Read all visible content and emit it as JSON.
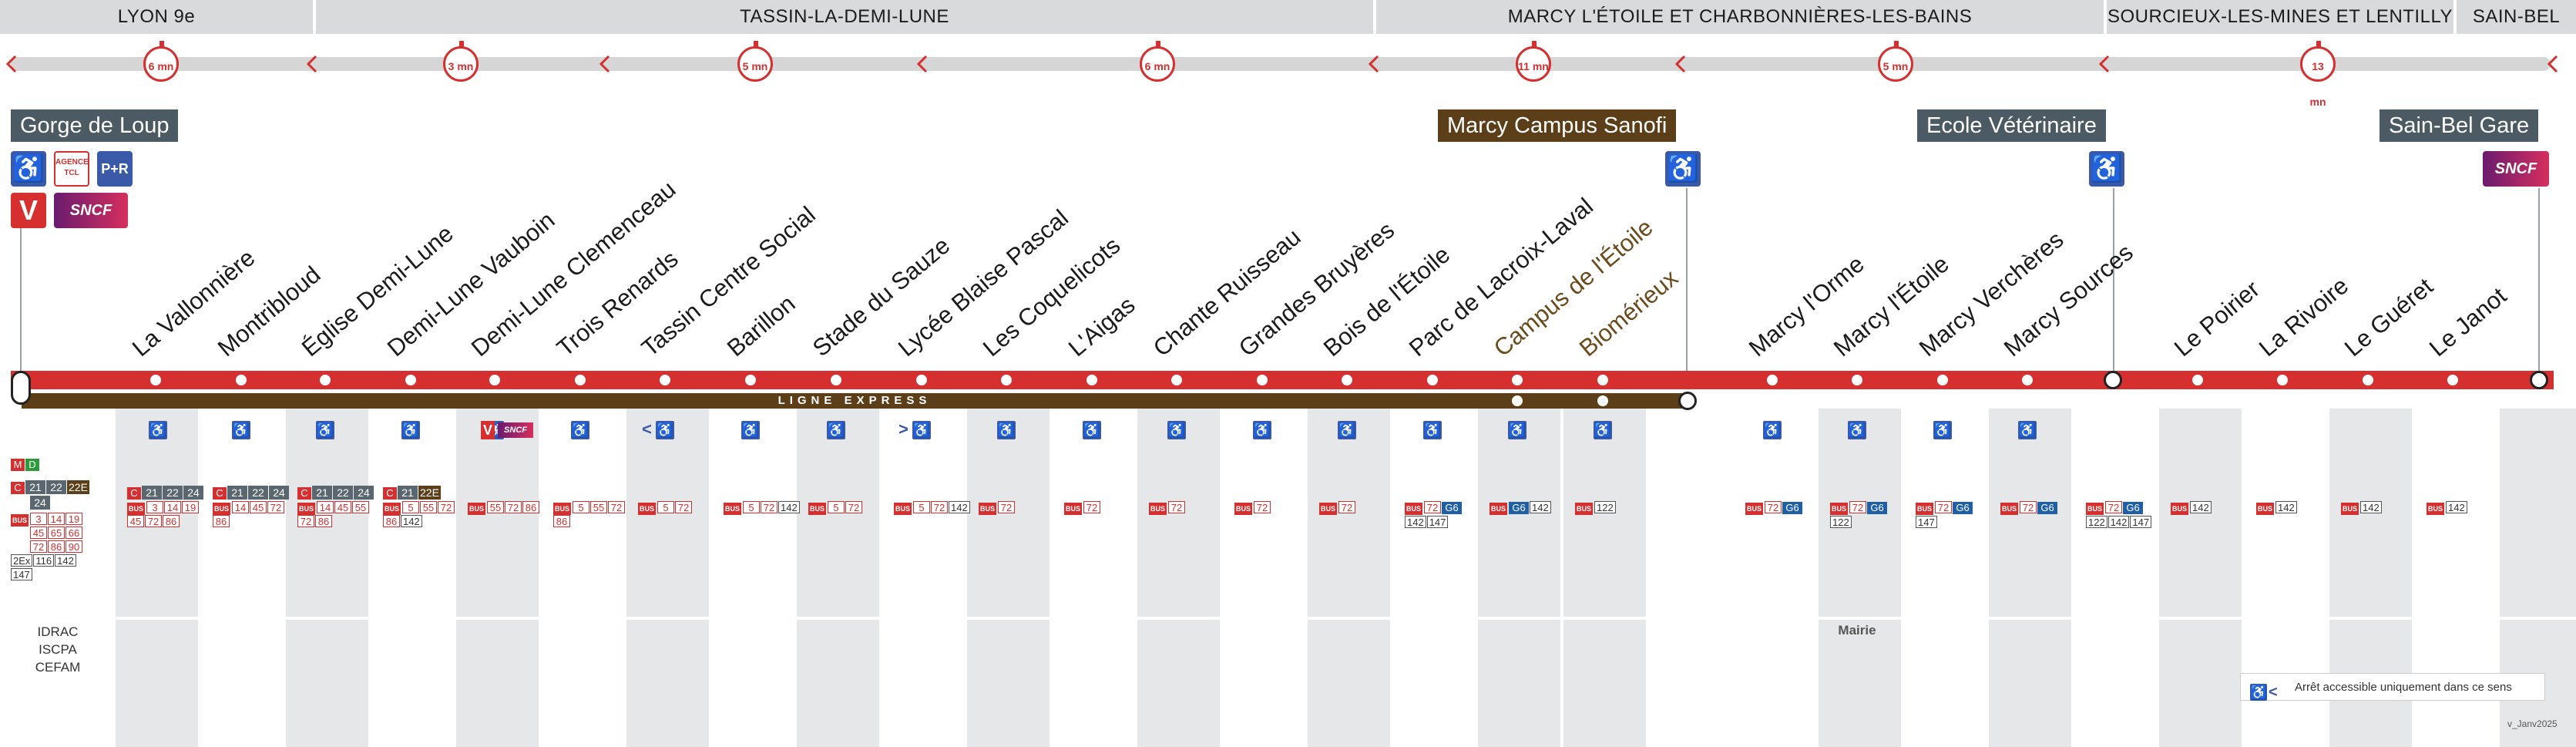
{
  "communes": [
    "LYON 9e",
    "TASSIN-LA-DEMI-LUNE",
    "MARCY L'ÉTOILE ET CHARBONNIÈRES-LES-BAINS",
    "SOURCIEUX-LES-MINES ET LENTILLY",
    "SAIN-BEL"
  ],
  "timers": [
    "6 mn",
    "3 mn",
    "5 mn",
    "6 mn",
    "11 mn",
    "5 mn",
    "13 mn"
  ],
  "terminals": {
    "gorge": "Gorge de Loup",
    "sanofi": "Marcy Campus Sanofi",
    "veto": "Ecole Vétérinaire",
    "sainbel": "Sain-Bel Gare"
  },
  "icons": {
    "agence": "AGENCE TCL",
    "parking": "P+R",
    "sncf": "SNCF",
    "v": "V"
  },
  "stops": [
    "La Vallonnière",
    "Montribloud",
    "Église Demi-Lune",
    "Demi-Lune Vauboin",
    "Demi-Lune Clemenceau",
    "Trois Renards",
    "Tassin Centre Social",
    "Barillon",
    "Stade du Sauze",
    "Lycée Blaise Pascal",
    "Les Coquelicots",
    "L'Aigas",
    "Chante Ruisseau",
    "Grandes Bruyères",
    "Bois de l'Étoile",
    "Parc de Lacroix-Laval",
    "Campus de l'Étoile",
    "Biomérieux",
    "Marcy l'Orme",
    "Marcy l'Étoile",
    "Marcy Verchères",
    "Marcy Sources",
    "Le Poirier",
    "La Rivoire",
    "Le Guéret",
    "Le Janot"
  ],
  "express_label": "LIGNE EXPRESS",
  "gorge_connections": {
    "md": [
      "M",
      "D"
    ],
    "c_lines": [
      "21",
      "22",
      "22E",
      "24"
    ],
    "bus_lines": [
      "3",
      "14",
      "19",
      "45",
      "65",
      "66",
      "72",
      "86",
      "90"
    ],
    "grey_lines": [
      "2Ex",
      "116",
      "142",
      "147"
    ]
  },
  "columns": [
    {
      "c": [
        "C",
        "21",
        "22",
        "24"
      ],
      "bus": [
        "3",
        "14",
        "19",
        "45",
        "72",
        "86"
      ],
      "grey": []
    },
    {
      "c": [
        "C",
        "21",
        "22",
        "24"
      ],
      "bus": [
        "14",
        "45",
        "72",
        "86"
      ],
      "grey": []
    },
    {
      "c": [
        "C",
        "21",
        "22",
        "24"
      ],
      "bus": [
        "14",
        "45",
        "55",
        "72",
        "86"
      ],
      "grey": []
    },
    {
      "c": [
        "C",
        "21",
        "22E"
      ],
      "bus": [
        "5",
        "55",
        "72",
        "86"
      ],
      "grey": [
        "142"
      ]
    },
    {
      "c": [],
      "bus": [
        "55",
        "72",
        "86"
      ],
      "grey": []
    },
    {
      "c": [],
      "bus": [
        "5",
        "55",
        "72",
        "86"
      ],
      "grey": []
    },
    {
      "c": [],
      "bus": [
        "5",
        "72"
      ],
      "grey": []
    },
    {
      "c": [],
      "bus": [
        "5",
        "72"
      ],
      "grey": [
        "142"
      ]
    },
    {
      "c": [],
      "bus": [
        "5",
        "72"
      ],
      "grey": []
    },
    {
      "c": [],
      "bus": [
        "5",
        "72"
      ],
      "grey": [
        "142"
      ]
    },
    {
      "c": [],
      "bus": [
        "72"
      ],
      "grey": []
    },
    {
      "c": [],
      "bus": [
        "72"
      ],
      "grey": []
    },
    {
      "c": [],
      "bus": [
        "72"
      ],
      "grey": []
    },
    {
      "c": [],
      "bus": [
        "72"
      ],
      "grey": []
    },
    {
      "c": [],
      "bus": [
        "72"
      ],
      "grey": []
    },
    {
      "c": [],
      "bus": [
        "72"
      ],
      "blue": [
        "G6"
      ],
      "grey": [
        "142",
        "147"
      ]
    },
    {
      "c": [],
      "bus": [],
      "blue": [
        "G6"
      ],
      "grey": [
        "142"
      ]
    },
    {
      "c": [],
      "bus": [],
      "grey": [
        "122"
      ]
    },
    {
      "c": [],
      "bus": [
        "72"
      ],
      "blue": [
        "G6"
      ],
      "grey": []
    },
    {
      "c": [],
      "bus": [
        "72"
      ],
      "blue": [
        "G6"
      ],
      "grey": [
        "122"
      ]
    },
    {
      "c": [],
      "bus": [
        "72"
      ],
      "blue": [
        "G6"
      ],
      "grey": [
        "147"
      ]
    },
    {
      "c": [],
      "bus": [
        "72"
      ],
      "blue": [
        "G6"
      ],
      "grey": []
    },
    {
      "c": [],
      "bus": [
        "72"
      ],
      "blue": [
        "G6"
      ],
      "grey": [
        "122",
        "142",
        "147"
      ]
    },
    {
      "c": [],
      "bus": [],
      "grey": [
        "142"
      ]
    },
    {
      "c": [],
      "bus": [],
      "grey": [
        "142"
      ]
    },
    {
      "c": [],
      "bus": [],
      "grey": [
        "142"
      ]
    },
    {
      "c": [],
      "bus": [],
      "grey": [
        "142"
      ]
    }
  ],
  "notes": {
    "gorge": "IDRAC\nISCPA\nCEFAM",
    "mairie": "Mairie"
  },
  "bus_tag": "BUS",
  "legend": "Arrêt accessible uniquement dans ce sens",
  "version": "v_Janv2025",
  "colors": {
    "line": "#d62f2f",
    "express": "#5c3f18",
    "pmr": "#3a59a8"
  }
}
